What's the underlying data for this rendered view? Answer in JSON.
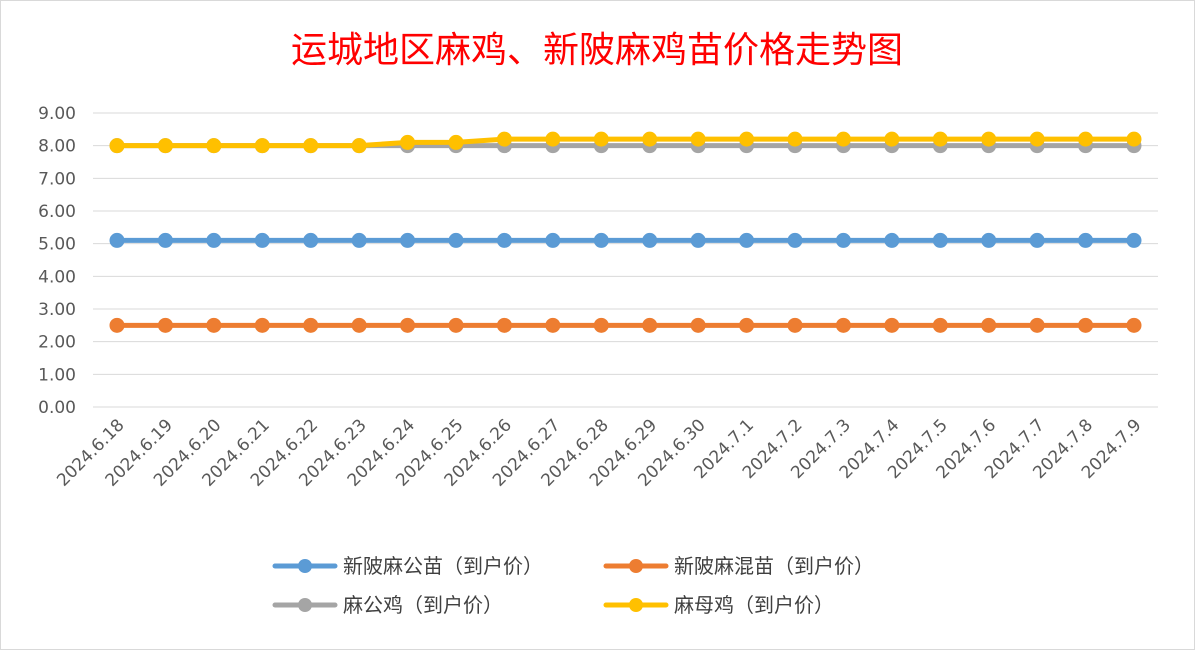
{
  "chart_data": {
    "type": "line",
    "title": "运城地区麻鸡、新陂麻鸡苗价格走势图",
    "xlabel": "",
    "ylabel": "",
    "ylim": [
      0,
      9
    ],
    "ytick_step": 1,
    "ytick_labels": [
      "0.00",
      "1.00",
      "2.00",
      "3.00",
      "4.00",
      "5.00",
      "6.00",
      "7.00",
      "8.00",
      "9.00"
    ],
    "grid": true,
    "legend_position": "bottom",
    "categories": [
      "2024.6.18",
      "2024.6.19",
      "2024.6.20",
      "2024.6.21",
      "2024.6.22",
      "2024.6.23",
      "2024.6.24",
      "2024.6.25",
      "2024.6.26",
      "2024.6.27",
      "2024.6.28",
      "2024.6.29",
      "2024.6.30",
      "2024.7.1",
      "2024.7.2",
      "2024.7.3",
      "2024.7.4",
      "2024.7.5",
      "2024.7.6",
      "2024.7.7",
      "2024.7.8",
      "2024.7.9"
    ],
    "series": [
      {
        "name": "新陂麻公苗（到户价）",
        "color": "#5B9BD5",
        "values": [
          5.1,
          5.1,
          5.1,
          5.1,
          5.1,
          5.1,
          5.1,
          5.1,
          5.1,
          5.1,
          5.1,
          5.1,
          5.1,
          5.1,
          5.1,
          5.1,
          5.1,
          5.1,
          5.1,
          5.1,
          5.1,
          5.1
        ]
      },
      {
        "name": "新陂麻混苗（到户价）",
        "color": "#ED7D31",
        "values": [
          2.5,
          2.5,
          2.5,
          2.5,
          2.5,
          2.5,
          2.5,
          2.5,
          2.5,
          2.5,
          2.5,
          2.5,
          2.5,
          2.5,
          2.5,
          2.5,
          2.5,
          2.5,
          2.5,
          2.5,
          2.5,
          2.5
        ]
      },
      {
        "name": "麻公鸡（到户价）",
        "color": "#A5A5A5",
        "values": [
          8.0,
          8.0,
          8.0,
          8.0,
          8.0,
          8.0,
          8.0,
          8.0,
          8.0,
          8.0,
          8.0,
          8.0,
          8.0,
          8.0,
          8.0,
          8.0,
          8.0,
          8.0,
          8.0,
          8.0,
          8.0,
          8.0
        ]
      },
      {
        "name": "麻母鸡（到户价）",
        "color": "#FFC000",
        "values": [
          8.0,
          8.0,
          8.0,
          8.0,
          8.0,
          8.0,
          8.1,
          8.1,
          8.2,
          8.2,
          8.2,
          8.2,
          8.2,
          8.2,
          8.2,
          8.2,
          8.2,
          8.2,
          8.2,
          8.2,
          8.2,
          8.2
        ]
      }
    ],
    "colors": {
      "title": "#FF0000",
      "grid": "#D9D9D9",
      "tick": "#595959"
    }
  }
}
